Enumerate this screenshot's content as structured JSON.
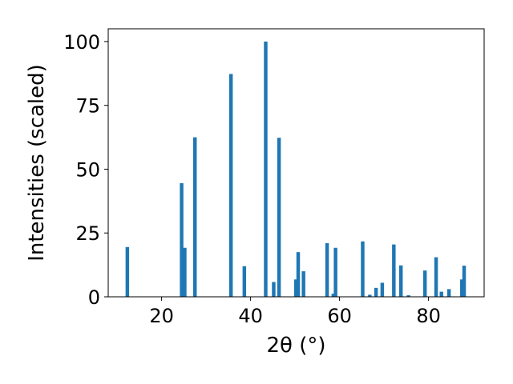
{
  "chart_data": {
    "type": "bar",
    "xlabel": "2θ (°)",
    "ylabel": "Intensities (scaled)",
    "xlim": [
      8,
      92.5
    ],
    "ylim": [
      0,
      105
    ],
    "x_ticks": [
      20,
      40,
      60,
      80
    ],
    "y_ticks": [
      0,
      25,
      50,
      75,
      100
    ],
    "grid": false,
    "legend": "none",
    "bar_color": "#1f77b4",
    "bar_width": 0.8,
    "series": [
      {
        "x": [
          12.3,
          24.5,
          25.2,
          27.5,
          35.6,
          38.6,
          43.4,
          45.2,
          46.4,
          50.2,
          50.7,
          51.9,
          57.2,
          58.6,
          59.1,
          65.2,
          66.8,
          68.2,
          69.6,
          72.2,
          73.8,
          75.5,
          79.2,
          81.7,
          82.9,
          84.6,
          87.5,
          88.0
        ],
        "values": [
          19.5,
          44.5,
          19.2,
          62.5,
          87.3,
          12.0,
          100,
          5.8,
          62.3,
          6.8,
          17.5,
          10.0,
          21.0,
          1.2,
          19.2,
          21.7,
          0.8,
          3.5,
          5.5,
          20.5,
          12.3,
          0.6,
          10.3,
          15.5,
          2.0,
          3.0,
          6.8,
          12.2
        ]
      }
    ]
  }
}
